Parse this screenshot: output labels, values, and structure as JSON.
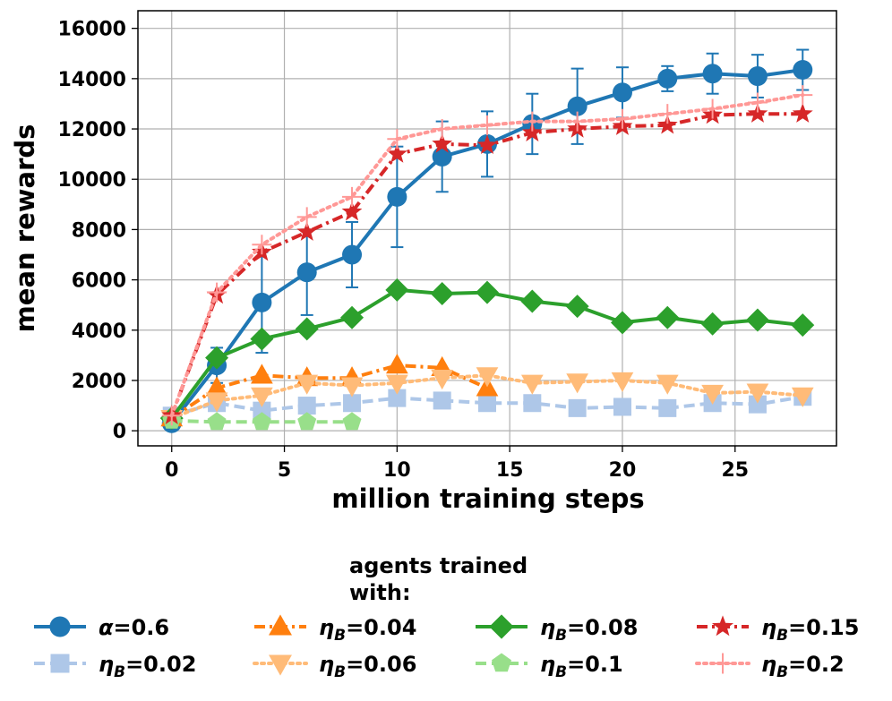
{
  "chart_data": {
    "type": "line",
    "xlabel": "million training steps",
    "ylabel": "mean rewards",
    "xlim": [
      -1.5,
      29.5
    ],
    "ylim": [
      -600,
      16700
    ],
    "xticks": [
      0,
      5,
      10,
      15,
      20,
      25
    ],
    "yticks": [
      0,
      2000,
      4000,
      6000,
      8000,
      10000,
      12000,
      14000,
      16000
    ],
    "grid": true,
    "legend": {
      "title_lines": [
        "agents trained",
        "with:"
      ],
      "placement": "below"
    },
    "series": [
      {
        "name": "α=0.6",
        "symbol": "α",
        "value_text": "=0.6",
        "color": "#1f77b4",
        "marker": "circle",
        "dash": "solid",
        "x": [
          0,
          2,
          4,
          6,
          8,
          10,
          12,
          14,
          16,
          18,
          20,
          22,
          24,
          26,
          28
        ],
        "y": [
          300,
          2600,
          5100,
          6300,
          7000,
          9300,
          10900,
          11400,
          12200,
          12900,
          13450,
          14000,
          14200,
          14100,
          14350
        ],
        "err": [
          100,
          700,
          2000,
          1700,
          1300,
          2000,
          1400,
          1300,
          1200,
          1500,
          1000,
          500,
          800,
          850,
          800
        ]
      },
      {
        "name": "ηB=0.02",
        "symbol": "η",
        "sub": "B",
        "value_text": "=0.02",
        "color": "#aec7e8",
        "marker": "square",
        "dash": "dashed",
        "x": [
          0,
          2,
          4,
          6,
          8,
          10,
          12,
          14,
          16,
          18,
          20,
          22,
          24,
          26,
          28
        ],
        "y": [
          600,
          1100,
          800,
          1000,
          1100,
          1300,
          1200,
          1100,
          1100,
          900,
          950,
          900,
          1100,
          1050,
          1350
        ]
      },
      {
        "name": "ηB=0.04",
        "symbol": "η",
        "sub": "B",
        "value_text": "=0.04",
        "color": "#ff7f0e",
        "marker": "triangle-up",
        "dash": "dashdot",
        "x": [
          0,
          2,
          4,
          6,
          8,
          10,
          12,
          14
        ],
        "y": [
          500,
          1700,
          2200,
          2100,
          2100,
          2600,
          2500,
          1700
        ]
      },
      {
        "name": "ηB=0.06",
        "symbol": "η",
        "sub": "B",
        "value_text": "=0.06",
        "color": "#ffbb78",
        "marker": "triangle-down",
        "dash": "dotted",
        "x": [
          0,
          2,
          4,
          6,
          8,
          10,
          12,
          14,
          16,
          18,
          20,
          22,
          24,
          26,
          28
        ],
        "y": [
          500,
          1200,
          1400,
          1900,
          1800,
          1900,
          2100,
          2200,
          1900,
          1950,
          2000,
          1900,
          1500,
          1550,
          1400
        ]
      },
      {
        "name": "ηB=0.08",
        "symbol": "η",
        "sub": "B",
        "value_text": "=0.08",
        "color": "#2ca02c",
        "marker": "diamond",
        "dash": "solid",
        "x": [
          0,
          2,
          4,
          6,
          8,
          10,
          12,
          14,
          16,
          18,
          20,
          22,
          24,
          26,
          28
        ],
        "y": [
          500,
          2900,
          3650,
          4050,
          4500,
          5600,
          5450,
          5500,
          5150,
          4950,
          4300,
          4500,
          4250,
          4400,
          4200
        ]
      },
      {
        "name": "ηB=0.1",
        "symbol": "η",
        "sub": "B",
        "value_text": "=0.1",
        "color": "#98df8a",
        "marker": "pentagon",
        "dash": "dashed",
        "x": [
          0,
          2,
          4,
          6,
          8
        ],
        "y": [
          400,
          350,
          350,
          350,
          350
        ]
      },
      {
        "name": "ηB=0.15",
        "symbol": "η",
        "sub": "B",
        "value_text": "=0.15",
        "color": "#d62728",
        "marker": "star",
        "dash": "dashdot",
        "x": [
          0,
          2,
          4,
          6,
          8,
          10,
          12,
          14,
          16,
          18,
          20,
          22,
          24,
          26,
          28
        ],
        "y": [
          600,
          5400,
          7100,
          7900,
          8700,
          11000,
          11400,
          11350,
          11850,
          12000,
          12100,
          12150,
          12550,
          12600,
          12600
        ]
      },
      {
        "name": "ηB=0.2",
        "symbol": "η",
        "sub": "B",
        "value_text": "=0.2",
        "color": "#ff9896",
        "marker": "plus",
        "dash": "dotted",
        "x": [
          0,
          2,
          4,
          6,
          8,
          10,
          12,
          14,
          16,
          18,
          20,
          22,
          24,
          26,
          28
        ],
        "y": [
          600,
          5500,
          7400,
          8500,
          9300,
          11600,
          12000,
          12150,
          12300,
          12300,
          12400,
          12600,
          12800,
          13050,
          13350
        ]
      }
    ]
  }
}
